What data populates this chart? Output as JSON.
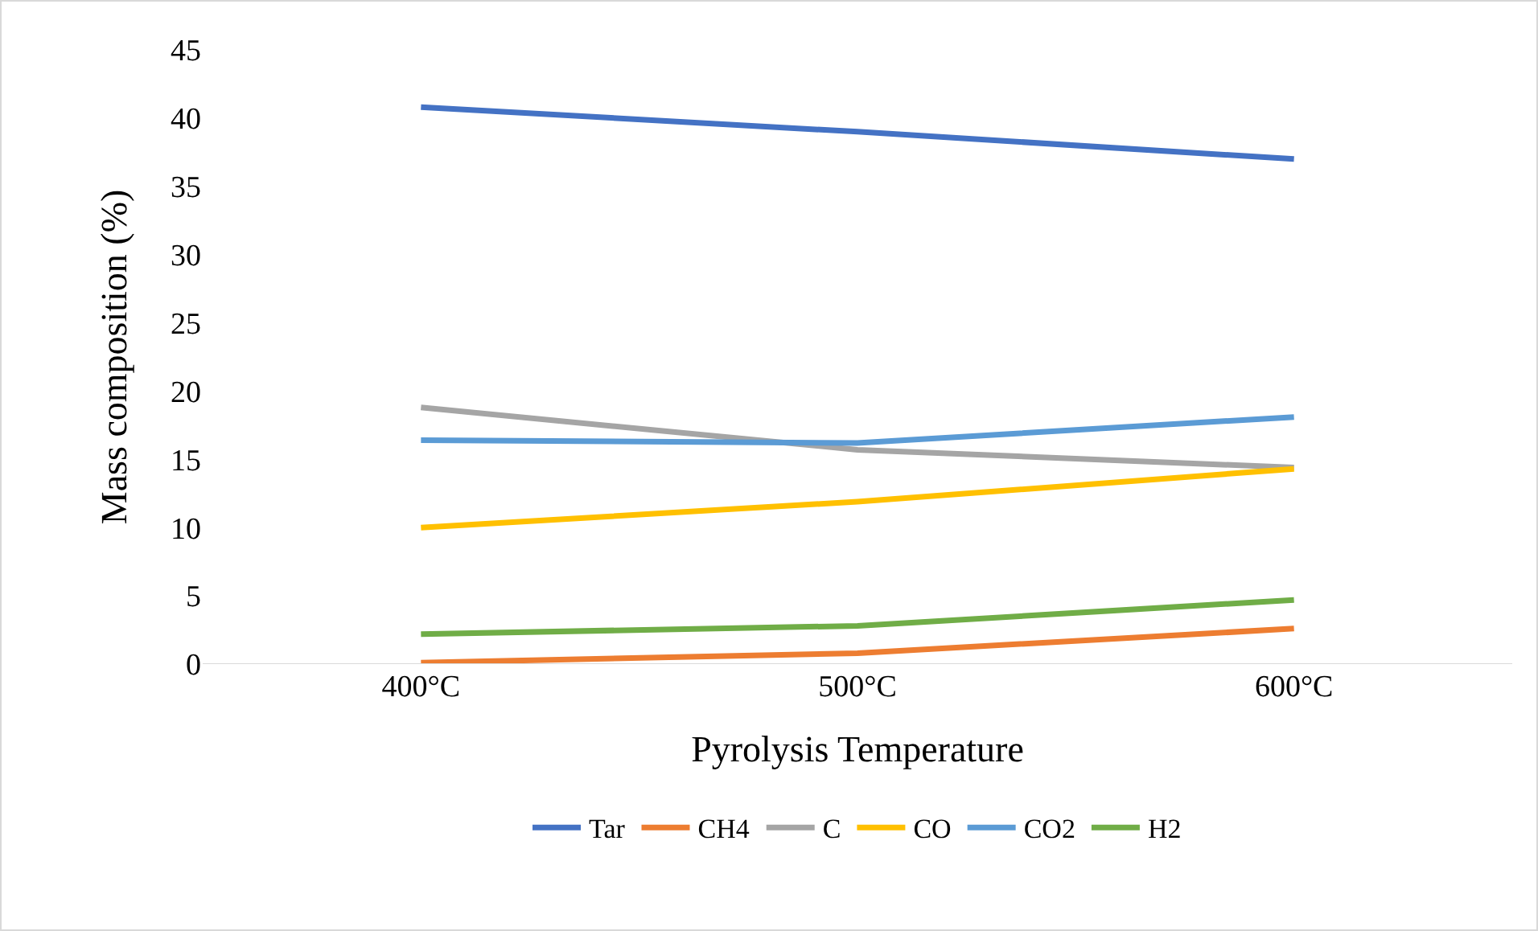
{
  "chart_data": {
    "type": "line",
    "xlabel": "Pyrolysis Temperature",
    "ylabel": "Mass composition (%)",
    "categories": [
      "400°C",
      "500°C",
      "600°C"
    ],
    "series": [
      {
        "name": "Tar",
        "color": "#4472c4",
        "values": [
          40.8,
          39.0,
          37.0
        ]
      },
      {
        "name": "CH4",
        "color": "#ed7d31",
        "values": [
          0.1,
          0.8,
          2.6
        ]
      },
      {
        "name": "C",
        "color": "#a5a5a5",
        "values": [
          18.8,
          15.7,
          14.4
        ]
      },
      {
        "name": "CO",
        "color": "#ffc000",
        "values": [
          10.0,
          11.9,
          14.3
        ]
      },
      {
        "name": "CO2",
        "color": "#5b9bd5",
        "values": [
          16.4,
          16.2,
          18.1
        ]
      },
      {
        "name": "H2",
        "color": "#70ad47",
        "values": [
          2.2,
          2.8,
          4.7
        ]
      }
    ],
    "ylim": [
      0,
      45
    ],
    "yticks": [
      0,
      5,
      10,
      15,
      20,
      25,
      30,
      35,
      40,
      45
    ],
    "grid": false,
    "legend": "bottom",
    "marker": "none",
    "line_style": "solid"
  }
}
